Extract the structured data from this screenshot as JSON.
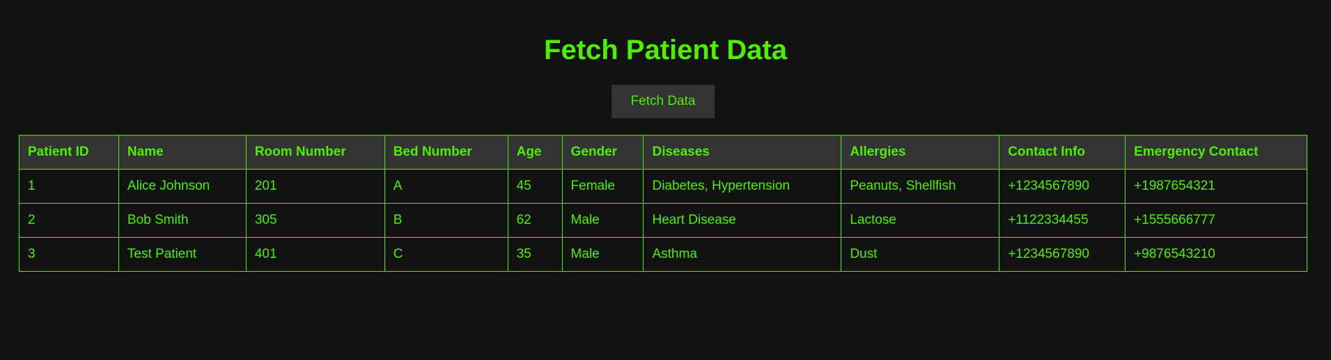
{
  "page": {
    "title": "Fetch Patient Data",
    "fetch_button_label": "Fetch Data"
  },
  "colors": {
    "background": "#121212",
    "accent": "#4cf000",
    "header_bg": "#333333"
  },
  "table": {
    "headers": [
      "Patient ID",
      "Name",
      "Room Number",
      "Bed Number",
      "Age",
      "Gender",
      "Diseases",
      "Allergies",
      "Contact Info",
      "Emergency Contact"
    ],
    "rows": [
      [
        "1",
        "Alice Johnson",
        "201",
        "A",
        "45",
        "Female",
        "Diabetes, Hypertension",
        "Peanuts, Shellfish",
        "+1234567890",
        "+1987654321"
      ],
      [
        "2",
        "Bob Smith",
        "305",
        "B",
        "62",
        "Male",
        "Heart Disease",
        "Lactose",
        "+1122334455",
        "+1555666777"
      ],
      [
        "3",
        "Test Patient",
        "401",
        "C",
        "35",
        "Male",
        "Asthma",
        "Dust",
        "+1234567890",
        "+9876543210"
      ]
    ]
  }
}
